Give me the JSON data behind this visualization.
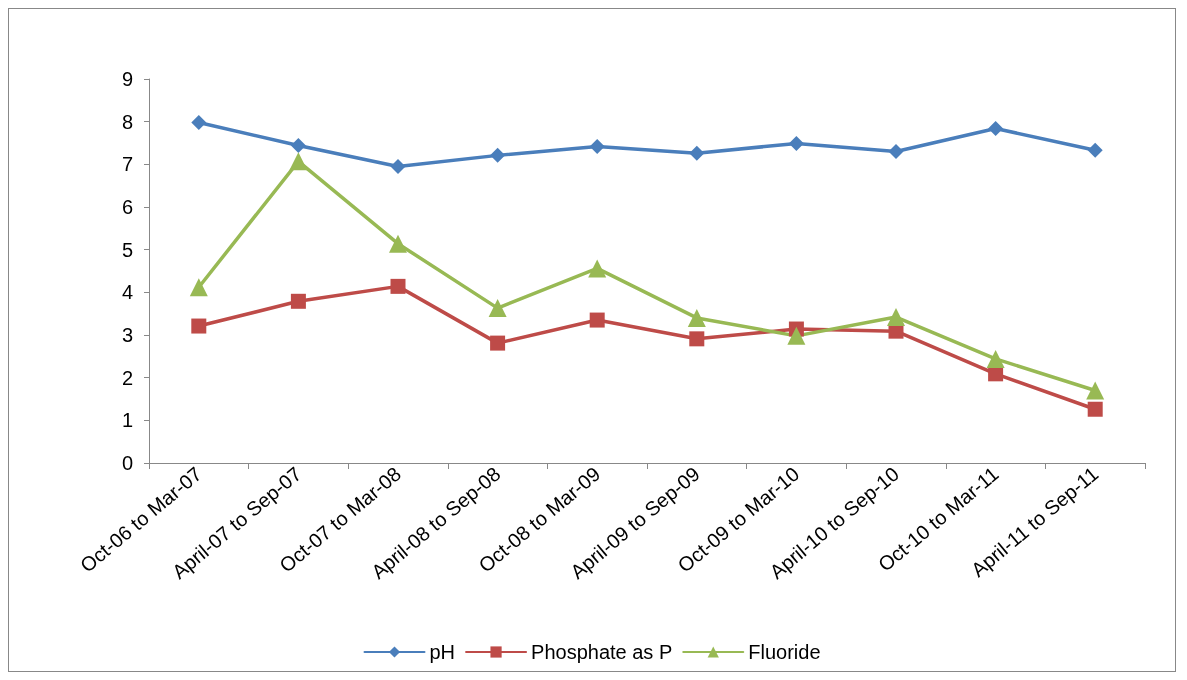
{
  "chart_data": {
    "type": "line",
    "categories": [
      "Oct-06 to Mar-07",
      "April-07 to Sep-07",
      "Oct-07 to Mar-08",
      "April-08 to Sep-08",
      "Oct-08 to Mar-09",
      "April-09 to Sep-09",
      "Oct-09 to Mar-10",
      "April-10 to Sep-10",
      "Oct-10 to Mar-11",
      "April-11 to Sep-11"
    ],
    "series": [
      {
        "name": "pH",
        "color": "#4a7ebb",
        "marker": "diamond",
        "values": [
          7.98,
          7.44,
          6.95,
          7.21,
          7.42,
          7.26,
          7.49,
          7.3,
          7.84,
          7.33
        ]
      },
      {
        "name": "Phosphate as P",
        "color": "#be4b48",
        "marker": "square",
        "values": [
          3.21,
          3.79,
          4.14,
          2.81,
          3.35,
          2.91,
          3.14,
          3.09,
          2.09,
          1.26
        ]
      },
      {
        "name": "Fluoride",
        "color": "#98b954",
        "marker": "triangle",
        "values": [
          4.12,
          7.07,
          5.14,
          3.63,
          4.56,
          3.4,
          2.98,
          3.42,
          2.44,
          1.7
        ]
      }
    ],
    "ylim": [
      0,
      9
    ],
    "yticks": [
      0,
      1,
      2,
      3,
      4,
      5,
      6,
      7,
      8,
      9
    ],
    "grid": false,
    "legend": "bottom",
    "line_style": "solid"
  }
}
